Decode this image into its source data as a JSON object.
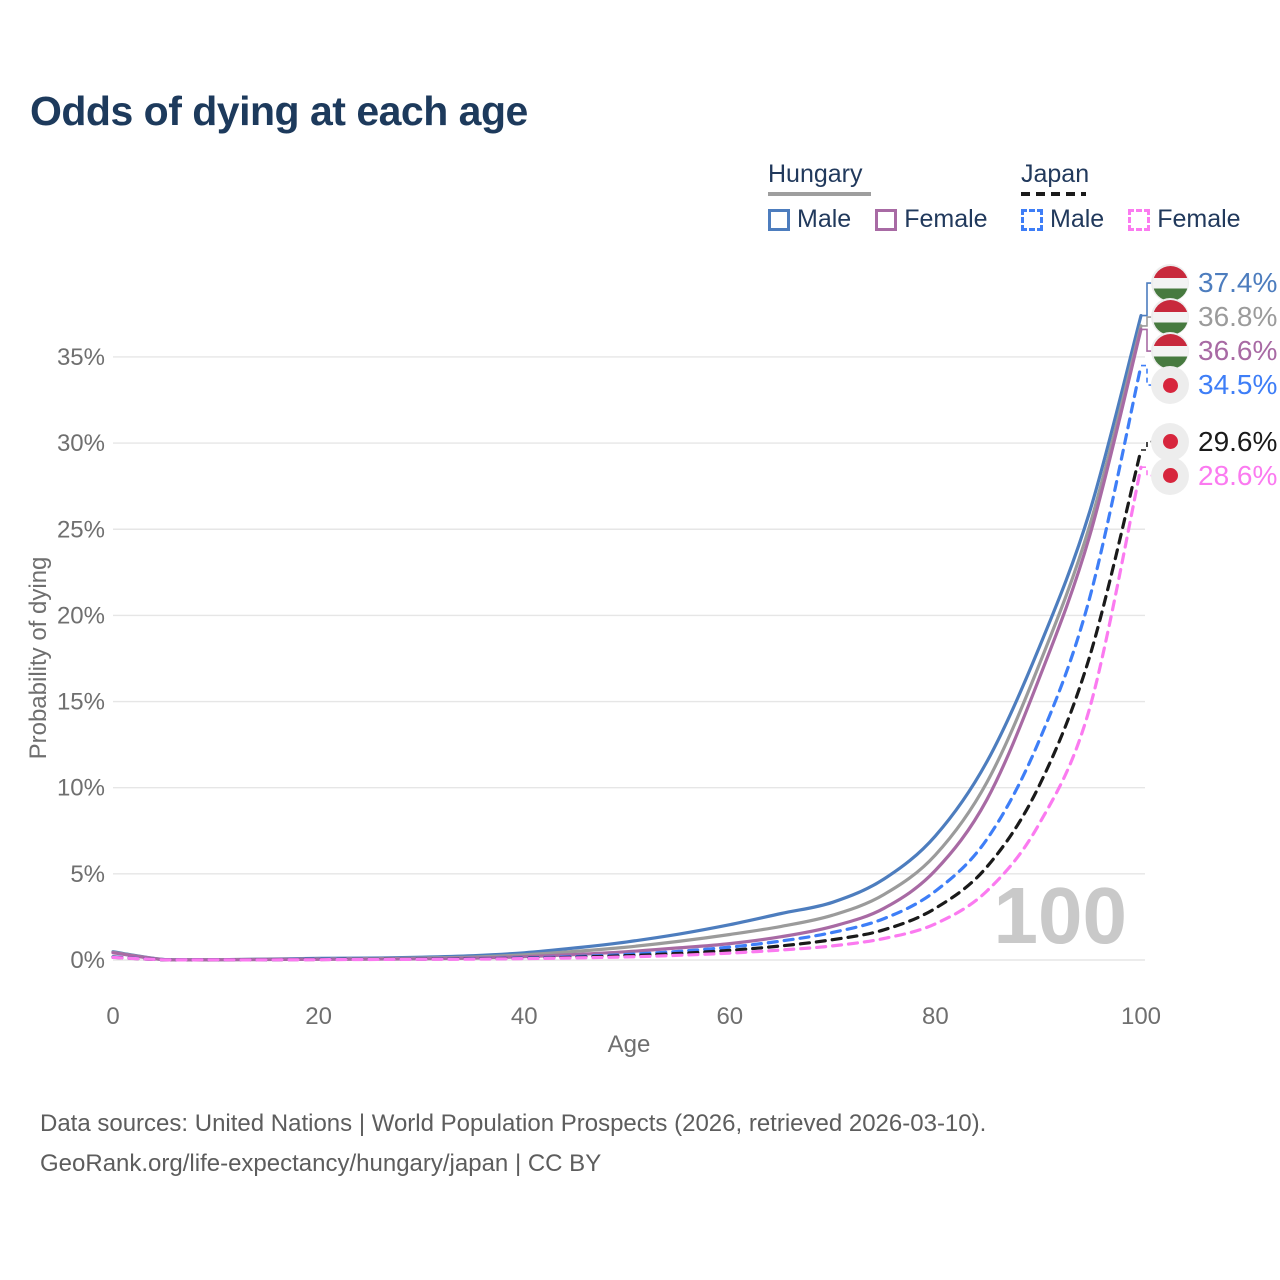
{
  "title": "Odds of dying at each age",
  "watermark_age": "100",
  "legend": {
    "hungary": {
      "label": "Hungary",
      "male": "Male",
      "female": "Female"
    },
    "japan": {
      "label": "Japan",
      "male": "Male",
      "female": "Female"
    }
  },
  "footer": {
    "line1": "Data sources: United Nations | World Population Prospects (2026, retrieved 2026-03-10).",
    "line2": "GeoRank.org/life-expectancy/hungary/japan | CC BY"
  },
  "icons": {
    "hungary_flag": {
      "red": "#c8293c",
      "white": "#f3f3f3",
      "green": "#477a3f",
      "bg": "#ededed"
    },
    "japan_flag": {
      "red": "#d7263d",
      "bg": "#ededed"
    }
  },
  "chart_data": {
    "type": "line",
    "title": "Odds of dying at each age",
    "xlabel": "Age",
    "ylabel": "Probability of dying",
    "xlim": [
      0,
      100
    ],
    "ylim_pct": [
      0,
      38.5
    ],
    "x_ticks": [
      0,
      20,
      40,
      60,
      80,
      100
    ],
    "y_ticks_pct": [
      0,
      5,
      10,
      15,
      20,
      25,
      30,
      35
    ],
    "grid": "horizontal",
    "legend_position": "top-right",
    "ages": [
      0,
      5,
      10,
      15,
      20,
      25,
      30,
      35,
      40,
      45,
      50,
      55,
      60,
      65,
      70,
      75,
      80,
      85,
      90,
      95,
      100
    ],
    "series": [
      {
        "name": "Hungary Male",
        "country": "Hungary",
        "sex": "Male",
        "style": "solid",
        "color": "#4d7dbe",
        "end_label": "37.4%",
        "end_value_pct": 37.4,
        "flag": "hungary",
        "values": [
          0.48,
          0.03,
          0.02,
          0.05,
          0.09,
          0.11,
          0.16,
          0.25,
          0.42,
          0.7,
          1.05,
          1.5,
          2.05,
          2.7,
          3.35,
          4.7,
          7.2,
          11.5,
          18.0,
          26.0,
          37.4
        ]
      },
      {
        "name": "Hungary Both sexes",
        "country": "Hungary",
        "sex": "Both",
        "style": "solid",
        "color": "#9b9b9b",
        "end_label": "36.8%",
        "end_value_pct": 36.8,
        "flag": "hungary",
        "values": [
          0.45,
          0.02,
          0.02,
          0.04,
          0.06,
          0.08,
          0.11,
          0.17,
          0.3,
          0.5,
          0.75,
          1.08,
          1.48,
          1.95,
          2.6,
          3.8,
          6.1,
          10.3,
          17.0,
          25.2,
          36.8
        ]
      },
      {
        "name": "Hungary Female",
        "country": "Hungary",
        "sex": "Female",
        "style": "solid",
        "color": "#a86aa4",
        "end_label": "36.6%",
        "end_value_pct": 36.6,
        "flag": "hungary",
        "values": [
          0.42,
          0.02,
          0.01,
          0.03,
          0.04,
          0.05,
          0.07,
          0.11,
          0.19,
          0.32,
          0.48,
          0.7,
          0.95,
          1.35,
          1.95,
          3.0,
          5.2,
          9.3,
          16.2,
          24.6,
          36.6
        ]
      },
      {
        "name": "Japan Male",
        "country": "Japan",
        "sex": "Male",
        "style": "dashed",
        "color": "#3e7ef7",
        "end_label": "34.5%",
        "end_value_pct": 34.5,
        "flag": "japan",
        "values": [
          0.18,
          0.01,
          0.01,
          0.02,
          0.04,
          0.05,
          0.06,
          0.08,
          0.12,
          0.2,
          0.32,
          0.5,
          0.75,
          1.1,
          1.6,
          2.4,
          4.0,
          7.0,
          12.6,
          21.0,
          34.5
        ]
      },
      {
        "name": "Japan Both sexes",
        "country": "Japan",
        "sex": "Both",
        "style": "dashed",
        "color": "#1a1a1a",
        "end_label": "29.6%",
        "end_value_pct": 29.6,
        "flag": "japan",
        "values": [
          0.16,
          0.01,
          0.01,
          0.02,
          0.03,
          0.04,
          0.05,
          0.07,
          0.1,
          0.16,
          0.25,
          0.38,
          0.56,
          0.82,
          1.18,
          1.75,
          3.0,
          5.4,
          10.0,
          17.6,
          29.6
        ]
      },
      {
        "name": "Japan Female",
        "country": "Japan",
        "sex": "Female",
        "style": "dashed",
        "color": "#fb7af0",
        "end_label": "28.6%",
        "end_value_pct": 28.6,
        "flag": "japan",
        "values": [
          0.15,
          0.01,
          0.01,
          0.01,
          0.02,
          0.03,
          0.04,
          0.05,
          0.08,
          0.12,
          0.18,
          0.27,
          0.4,
          0.58,
          0.82,
          1.25,
          2.1,
          4.0,
          7.8,
          14.6,
          28.6
        ]
      }
    ]
  }
}
